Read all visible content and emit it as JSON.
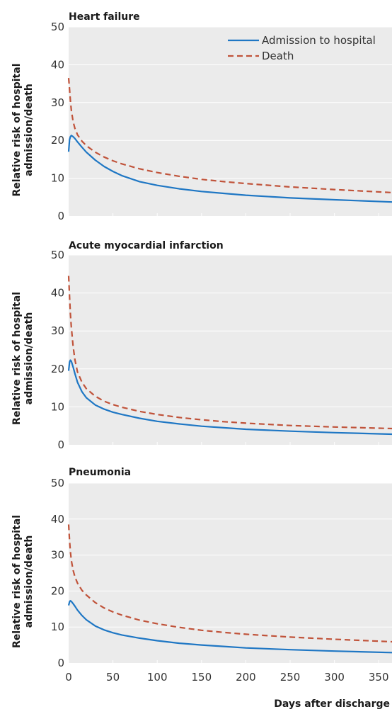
{
  "chart_data": [
    {
      "type": "line",
      "title": "Heart failure",
      "ylabel": [
        "Relative risk of hospital",
        "admission/death"
      ],
      "ylim": [
        0,
        50
      ],
      "xlim": [
        0,
        365
      ],
      "yticks": [
        "0",
        "10",
        "20",
        "30",
        "40",
        "50"
      ],
      "legend_position": "top-right",
      "series": [
        {
          "name": "Admission to hospital",
          "color": "#1f77c4",
          "style": "solid",
          "x": [
            0,
            1,
            2,
            3,
            5,
            7,
            10,
            15,
            20,
            30,
            40,
            50,
            60,
            80,
            100,
            125,
            150,
            175,
            200,
            250,
            300,
            365
          ],
          "y": [
            17,
            20.2,
            21.0,
            21.3,
            21.0,
            20.5,
            19.6,
            18.2,
            16.9,
            14.8,
            13.1,
            11.8,
            10.7,
            9.1,
            8.1,
            7.2,
            6.5,
            6.0,
            5.5,
            4.8,
            4.3,
            3.7
          ]
        },
        {
          "name": "Death",
          "color": "#c0533a",
          "style": "dashed",
          "x": [
            0,
            1,
            2,
            3,
            5,
            7,
            10,
            15,
            20,
            30,
            40,
            50,
            60,
            80,
            100,
            125,
            150,
            175,
            200,
            250,
            300,
            365
          ],
          "y": [
            36.5,
            33.5,
            30.5,
            28.0,
            25.0,
            23.2,
            21.5,
            19.8,
            18.6,
            16.9,
            15.6,
            14.6,
            13.8,
            12.5,
            11.5,
            10.5,
            9.7,
            9.1,
            8.6,
            7.7,
            7.0,
            6.2
          ]
        }
      ]
    },
    {
      "type": "line",
      "title": "Acute myocardial infarction",
      "ylabel": [
        "Relative risk of hospital",
        "admission/death"
      ],
      "ylim": [
        0,
        50
      ],
      "xlim": [
        0,
        365
      ],
      "yticks": [
        "0",
        "10",
        "20",
        "30",
        "40",
        "50"
      ],
      "series": [
        {
          "name": "Admission to hospital",
          "color": "#1f77c4",
          "style": "solid",
          "x": [
            0,
            1,
            2,
            3,
            5,
            7,
            10,
            15,
            20,
            30,
            40,
            50,
            60,
            80,
            100,
            125,
            150,
            175,
            200,
            250,
            300,
            365
          ],
          "y": [
            19.5,
            21.8,
            22.3,
            22.0,
            20.5,
            18.8,
            16.5,
            14.0,
            12.4,
            10.5,
            9.4,
            8.6,
            8.0,
            7.0,
            6.2,
            5.5,
            4.9,
            4.5,
            4.1,
            3.6,
            3.2,
            2.8
          ]
        },
        {
          "name": "Death",
          "color": "#c0533a",
          "style": "dashed",
          "x": [
            0,
            1,
            2,
            3,
            5,
            7,
            10,
            15,
            20,
            30,
            40,
            50,
            60,
            80,
            100,
            125,
            150,
            175,
            200,
            250,
            300,
            365
          ],
          "y": [
            44.5,
            39.0,
            34.5,
            31.0,
            26.0,
            22.5,
            19.2,
            16.5,
            14.8,
            12.8,
            11.5,
            10.6,
            9.9,
            8.8,
            8.0,
            7.2,
            6.6,
            6.1,
            5.7,
            5.1,
            4.7,
            4.3
          ]
        }
      ]
    },
    {
      "type": "line",
      "title": "Pneumonia",
      "ylabel": [
        "Relative risk of hospital",
        "admission/death"
      ],
      "ylim": [
        0,
        50
      ],
      "xlim": [
        0,
        365
      ],
      "yticks": [
        "0",
        "10",
        "20",
        "30",
        "40",
        "50"
      ],
      "xticks": [
        "0",
        "50",
        "100",
        "150",
        "200",
        "250",
        "300",
        "350"
      ],
      "xlabel": "Days after discharge",
      "series": [
        {
          "name": "Admission to hospital",
          "color": "#1f77c4",
          "style": "solid",
          "x": [
            0,
            1,
            2,
            3,
            5,
            7,
            10,
            15,
            20,
            30,
            40,
            50,
            60,
            80,
            100,
            125,
            150,
            175,
            200,
            250,
            300,
            365
          ],
          "y": [
            16.0,
            17.0,
            17.3,
            17.1,
            16.5,
            15.8,
            14.7,
            13.2,
            12.0,
            10.3,
            9.2,
            8.4,
            7.8,
            6.9,
            6.2,
            5.5,
            5.0,
            4.6,
            4.2,
            3.7,
            3.3,
            2.9
          ]
        },
        {
          "name": "Death",
          "color": "#c0533a",
          "style": "dashed",
          "x": [
            0,
            1,
            2,
            3,
            5,
            7,
            10,
            15,
            20,
            30,
            40,
            50,
            60,
            80,
            100,
            125,
            150,
            175,
            200,
            250,
            300,
            365
          ],
          "y": [
            38.5,
            34.0,
            31.0,
            28.5,
            25.8,
            24.0,
            22.2,
            20.2,
            18.9,
            16.8,
            15.3,
            14.2,
            13.3,
            11.9,
            10.9,
            9.9,
            9.1,
            8.5,
            8.0,
            7.2,
            6.6,
            5.9
          ]
        }
      ]
    }
  ]
}
